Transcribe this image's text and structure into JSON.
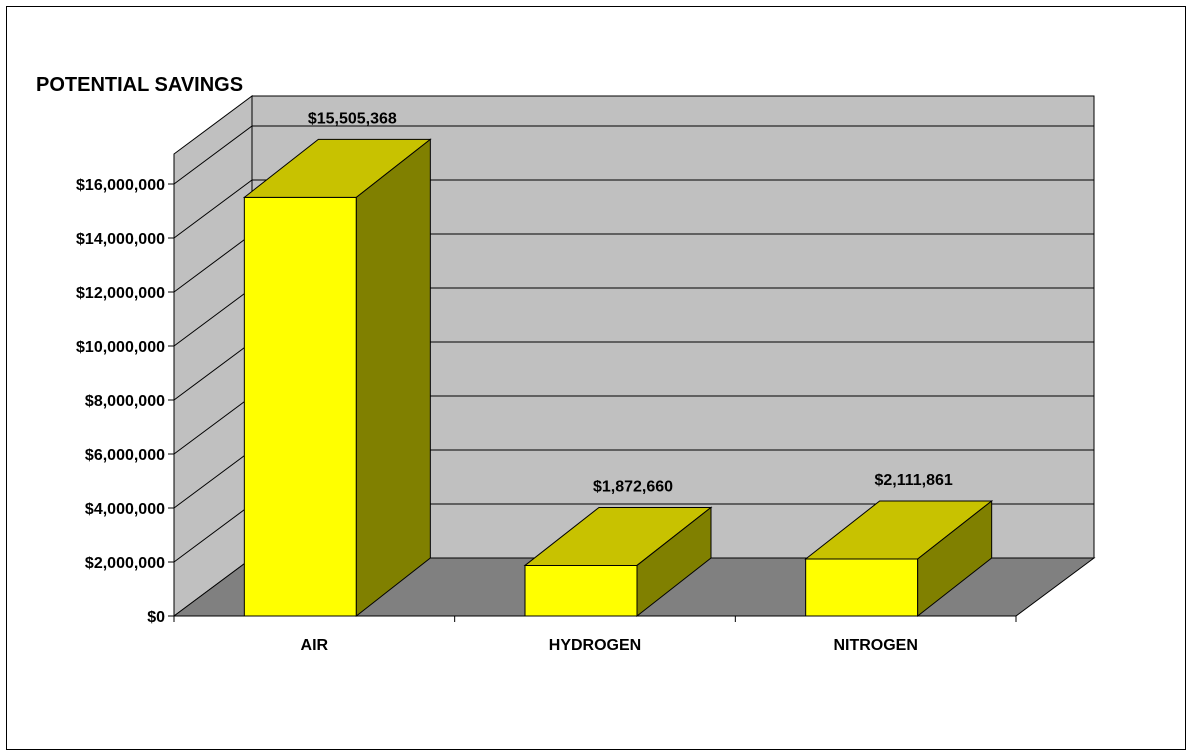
{
  "chart_data": {
    "type": "bar",
    "title": "POTENTIAL SAVINGS",
    "categories": [
      "AIR",
      "HYDROGEN",
      "NITROGEN"
    ],
    "values": [
      15505368,
      1872660,
      2111861
    ],
    "value_labels": [
      "$15,505,368",
      "$1,872,660",
      "$2,111,861"
    ],
    "y_ticks": [
      0,
      2000000,
      4000000,
      6000000,
      8000000,
      10000000,
      12000000,
      14000000,
      16000000
    ],
    "y_tick_labels": [
      "$0",
      "$2,000,000",
      "$4,000,000",
      "$6,000,000",
      "$8,000,000",
      "$10,000,000",
      "$12,000,000",
      "$14,000,000",
      "$16,000,000"
    ],
    "ylim": [
      0,
      16000000
    ],
    "xlabel": "",
    "ylabel": "",
    "grid": true,
    "legend": "none",
    "style": "3d-column",
    "colors": {
      "bar_front": "#FFFF00",
      "bar_top": "#C8C200",
      "bar_side": "#808000",
      "wall": "#C0C0C0",
      "floor": "#808080"
    }
  }
}
